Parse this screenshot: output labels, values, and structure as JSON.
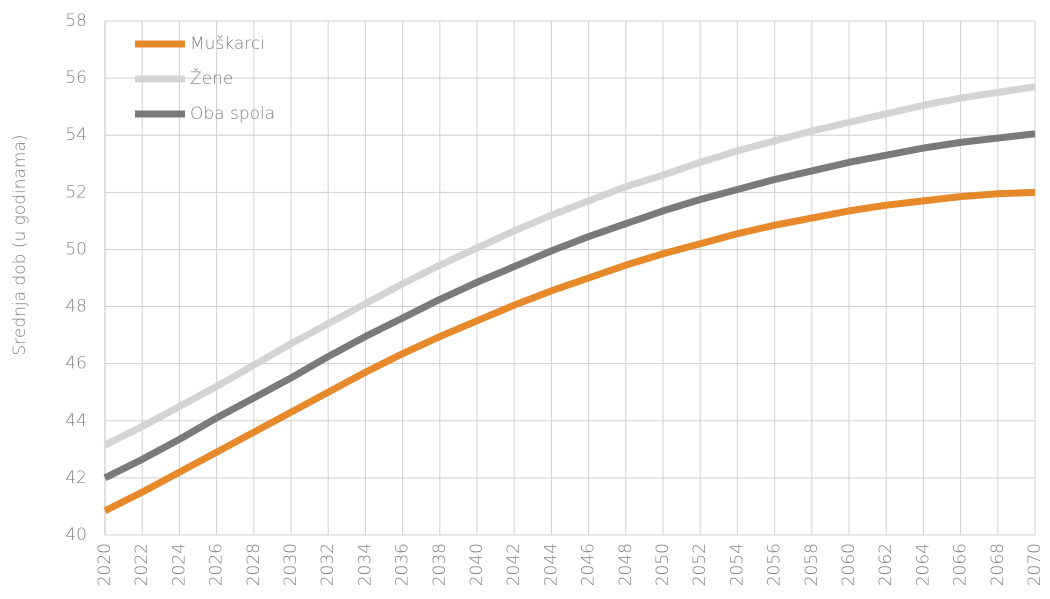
{
  "chart_data": {
    "type": "line",
    "y_label": "Srednja dob (u godinama)",
    "x": [
      2020,
      2022,
      2024,
      2026,
      2028,
      2030,
      2032,
      2034,
      2036,
      2038,
      2040,
      2042,
      2044,
      2046,
      2048,
      2050,
      2052,
      2054,
      2056,
      2058,
      2060,
      2062,
      2064,
      2066,
      2068,
      2070
    ],
    "series": [
      {
        "name": "Muškarci",
        "color": "#e6892a",
        "values": [
          40.85,
          41.5,
          42.2,
          42.9,
          43.6,
          44.3,
          45.0,
          45.7,
          46.35,
          46.95,
          47.5,
          48.05,
          48.55,
          49.0,
          49.45,
          49.85,
          50.2,
          50.55,
          50.85,
          51.1,
          51.35,
          51.55,
          51.7,
          51.85,
          51.95,
          52.0
        ]
      },
      {
        "name": "Žene",
        "color": "#d4d4d4",
        "values": [
          43.15,
          43.8,
          44.5,
          45.2,
          45.95,
          46.7,
          47.4,
          48.1,
          48.8,
          49.45,
          50.05,
          50.65,
          51.2,
          51.7,
          52.2,
          52.6,
          53.05,
          53.45,
          53.8,
          54.15,
          54.45,
          54.75,
          55.05,
          55.3,
          55.5,
          55.7
        ]
      },
      {
        "name": "Oba spola",
        "color": "#7a7a7a",
        "values": [
          42.0,
          42.65,
          43.35,
          44.1,
          44.8,
          45.5,
          46.25,
          46.95,
          47.6,
          48.25,
          48.85,
          49.4,
          49.95,
          50.45,
          50.9,
          51.35,
          51.75,
          52.1,
          52.45,
          52.75,
          53.05,
          53.3,
          53.55,
          53.75,
          53.9,
          54.05
        ]
      }
    ],
    "xlim": [
      2020,
      2070
    ],
    "xticks": [
      2020,
      2022,
      2024,
      2026,
      2028,
      2030,
      2032,
      2034,
      2036,
      2038,
      2040,
      2042,
      2044,
      2046,
      2048,
      2050,
      2052,
      2054,
      2056,
      2058,
      2060,
      2062,
      2064,
      2066,
      2068,
      2070
    ],
    "ylim": [
      40,
      58
    ],
    "yticks": [
      40,
      42,
      44,
      46,
      48,
      50,
      52,
      54,
      56,
      58
    ],
    "grid": true,
    "legend": "top-left"
  }
}
